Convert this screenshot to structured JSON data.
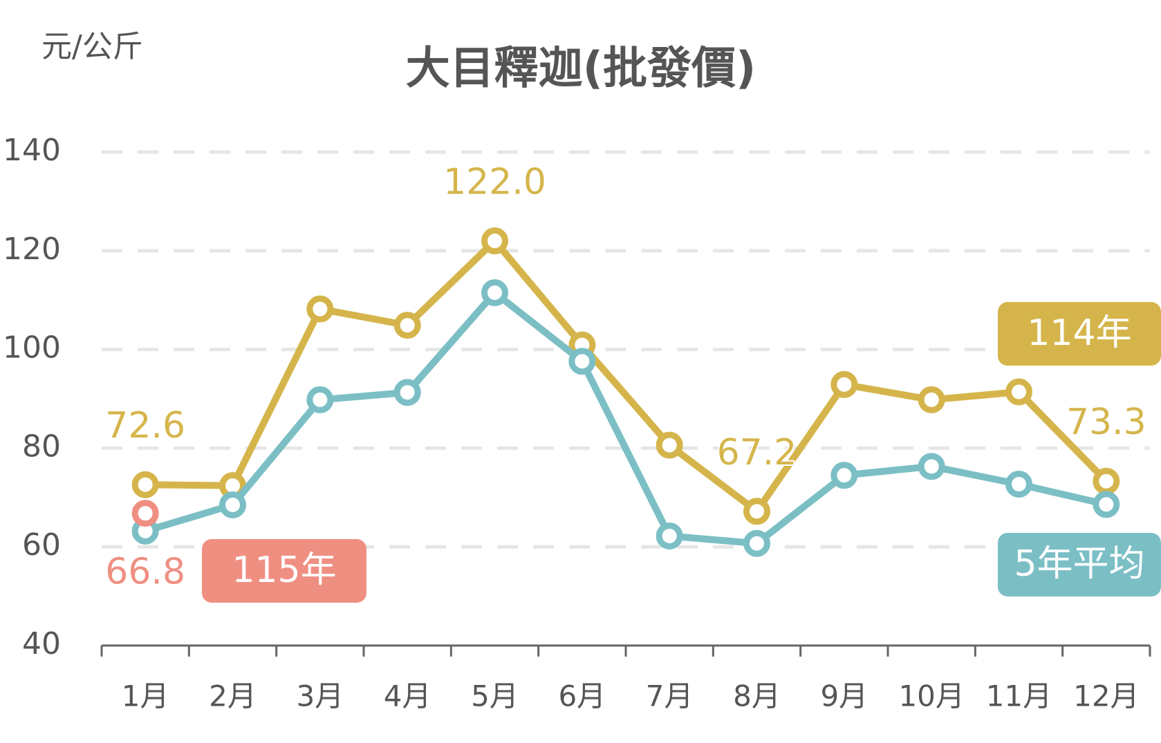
{
  "chart_data": {
    "type": "line",
    "title": "大目釋迦(批發價)",
    "y_label": "元/公斤",
    "categories": [
      "1月",
      "2月",
      "3月",
      "4月",
      "5月",
      "6月",
      "7月",
      "8月",
      "9月",
      "10月",
      "11月",
      "12月"
    ],
    "series": [
      {
        "name": "114年",
        "color": "#d5b54b",
        "values": [
          72.6,
          72.4,
          108.2,
          104.9,
          122.0,
          100.9,
          80.6,
          67.2,
          92.9,
          89.8,
          91.4,
          73.3
        ],
        "value_labels": [
          "72.6",
          null,
          null,
          null,
          "122.0",
          null,
          null,
          "67.2",
          null,
          null,
          null,
          "73.3"
        ]
      },
      {
        "name": "5年平均",
        "color": "#7bbfc5",
        "values": [
          63.2,
          68.5,
          89.8,
          91.3,
          111.5,
          97.6,
          62.2,
          60.7,
          74.5,
          76.3,
          72.7,
          68.6
        ]
      },
      {
        "name": "115年",
        "color": "#ef8f82",
        "values": [
          66.8,
          null,
          null,
          null,
          null,
          null,
          null,
          null,
          null,
          null,
          null,
          null
        ],
        "value_labels": [
          "66.8",
          null,
          null,
          null,
          null,
          null,
          null,
          null,
          null,
          null,
          null,
          null
        ]
      }
    ],
    "ylim": [
      40,
      140
    ],
    "yticks": [
      40,
      60,
      80,
      100,
      120,
      140
    ],
    "grid": true
  }
}
